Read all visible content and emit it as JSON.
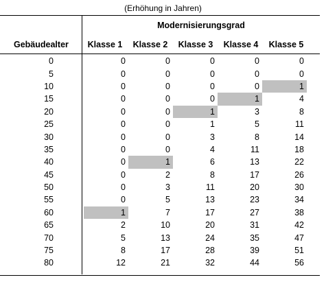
{
  "caption": "(Erhöhung in Jahren)",
  "group_header": "Modernisierungsgrad",
  "row_header": "Gebäudealter",
  "columns": [
    "Klasse 1",
    "Klasse 2",
    "Klasse 3",
    "Klasse 4",
    "Klasse 5"
  ],
  "highlight_color": "#c0c0c0",
  "rows": [
    {
      "age": "0",
      "values": [
        "0",
        "0",
        "0",
        "0",
        "0"
      ]
    },
    {
      "age": "5",
      "values": [
        "0",
        "0",
        "0",
        "0",
        "0"
      ]
    },
    {
      "age": "10",
      "values": [
        "0",
        "0",
        "0",
        "0",
        "1"
      ]
    },
    {
      "age": "15",
      "values": [
        "0",
        "0",
        "0",
        "1",
        "4"
      ]
    },
    {
      "age": "20",
      "values": [
        "0",
        "0",
        "1",
        "3",
        "8"
      ]
    },
    {
      "age": "25",
      "values": [
        "0",
        "0",
        "1",
        "5",
        "11"
      ]
    },
    {
      "age": "30",
      "values": [
        "0",
        "0",
        "3",
        "8",
        "14"
      ]
    },
    {
      "age": "35",
      "values": [
        "0",
        "0",
        "4",
        "11",
        "18"
      ]
    },
    {
      "age": "40",
      "values": [
        "0",
        "1",
        "6",
        "13",
        "22"
      ]
    },
    {
      "age": "45",
      "values": [
        "0",
        "2",
        "8",
        "17",
        "26"
      ]
    },
    {
      "age": "50",
      "values": [
        "0",
        "3",
        "11",
        "20",
        "30"
      ]
    },
    {
      "age": "55",
      "values": [
        "0",
        "5",
        "13",
        "23",
        "34"
      ]
    },
    {
      "age": "60",
      "values": [
        "1",
        "7",
        "17",
        "27",
        "38"
      ]
    },
    {
      "age": "65",
      "values": [
        "2",
        "10",
        "20",
        "31",
        "42"
      ]
    },
    {
      "age": "70",
      "values": [
        "5",
        "13",
        "24",
        "35",
        "47"
      ]
    },
    {
      "age": "75",
      "values": [
        "8",
        "17",
        "28",
        "39",
        "51"
      ]
    },
    {
      "age": "80",
      "values": [
        "12",
        "21",
        "32",
        "44",
        "56"
      ]
    }
  ],
  "highlights": [
    {
      "row": 2,
      "col": 4
    },
    {
      "row": 3,
      "col": 3
    },
    {
      "row": 4,
      "col": 2
    },
    {
      "row": 8,
      "col": 1
    },
    {
      "row": 12,
      "col": 0
    }
  ]
}
